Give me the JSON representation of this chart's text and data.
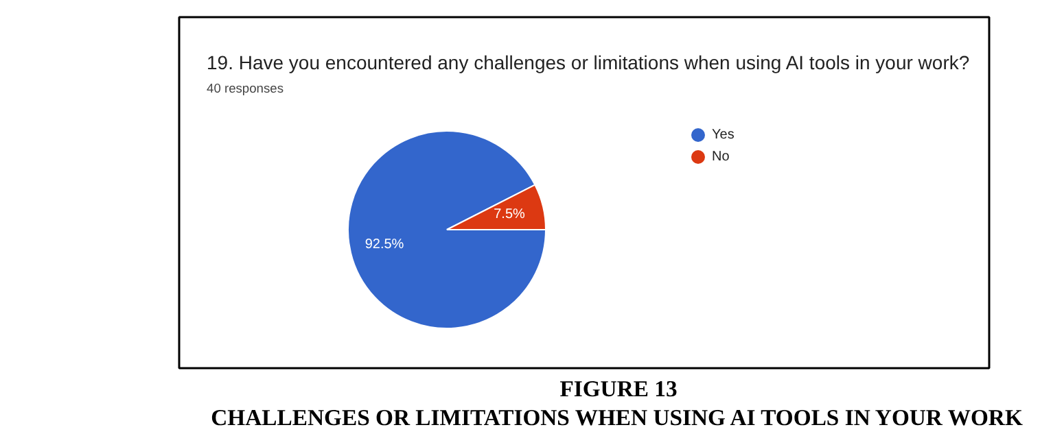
{
  "chart_data": {
    "type": "pie",
    "title": "19. Have you encountered any challenges or limitations when using AI tools in your work?",
    "subtitle": "40 responses",
    "categories": [
      "Yes",
      "No"
    ],
    "values": [
      92.5,
      7.5
    ],
    "colors": [
      "#3366cc",
      "#dc3912"
    ],
    "value_labels": [
      "92.5%",
      "7.5%"
    ],
    "legend": "right",
    "annotations": [
      "FIGURE 13",
      "CHALLENGES OR LIMITATIONS WHEN USING AI TOOLS IN YOUR WORK"
    ]
  }
}
